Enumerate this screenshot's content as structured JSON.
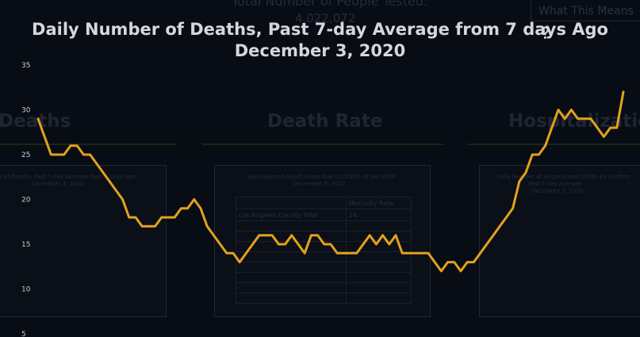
{
  "background": {
    "tested_label": "Total Number of People Tested:",
    "tested_value": "4,022,072",
    "what_this_means": "What This Means",
    "sections": [
      "Deaths",
      "Death Rate",
      "Hospitalizatio"
    ],
    "card_deaths_title": "r of Deaths, Past 7-day Average from 7 days Ago",
    "card_deaths_date": "December 3, 2020",
    "card_rate_title": "Age-Adjusted Death Rates due to COVID-19 per 100K",
    "card_rate_date": "December 3, 2020",
    "card_rate_col": "Mortality Rate",
    "card_rate_row": "Los Angeles County Total",
    "card_rate_value": "24",
    "card_hosp_title": "Daily Number of Hospitalized COVID-19 Confirm",
    "card_hosp_sub": "Past 7-day Average",
    "card_hosp_date": "December 3, 2020"
  },
  "chart_data": {
    "type": "line",
    "title": "Daily Number of Deaths, Past 7-day Average from 7 days Ago",
    "subtitle": "December 3, 2020",
    "yticks": [
      5,
      10,
      15,
      20,
      25,
      30,
      35
    ],
    "ylim": [
      5,
      35
    ],
    "color": "#e3a21a",
    "grid": false,
    "series": [
      {
        "values": [
          29,
          27,
          25,
          25,
          25,
          26,
          26,
          25,
          25,
          24,
          23,
          22,
          21,
          20,
          18,
          18,
          17,
          17,
          17,
          18,
          18,
          18,
          19,
          19,
          20,
          19,
          17,
          16,
          15,
          14,
          14,
          13,
          14,
          15,
          16,
          16,
          16,
          15,
          15,
          16,
          15,
          14,
          16,
          16,
          15,
          15,
          14,
          14,
          14,
          14,
          15,
          16,
          15,
          16,
          15,
          16,
          14,
          14,
          14,
          14,
          14,
          13,
          12,
          13,
          13,
          12,
          13,
          13,
          14,
          15,
          16,
          17,
          18,
          19,
          22,
          23,
          25,
          25,
          26,
          28,
          30,
          29,
          30,
          29,
          29,
          29,
          28,
          27,
          28,
          28,
          32
        ]
      }
    ]
  }
}
